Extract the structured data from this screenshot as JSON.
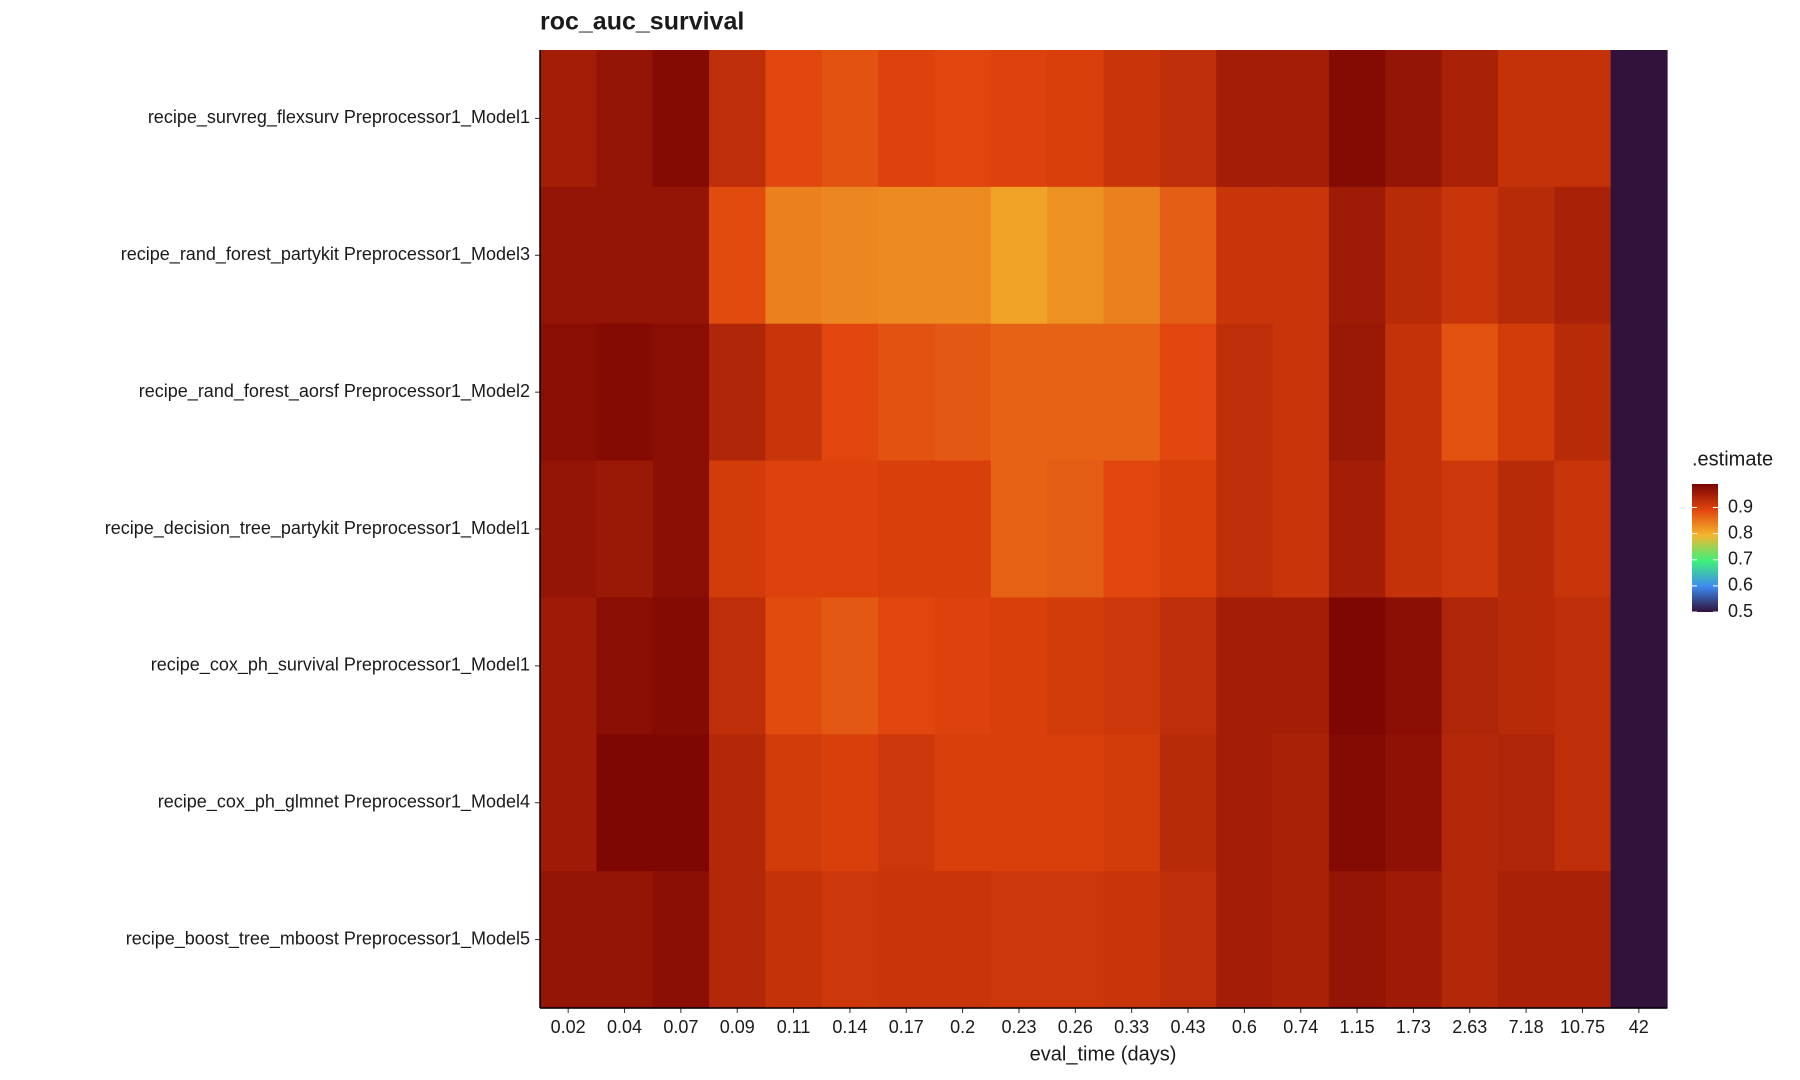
{
  "chart_data": {
    "type": "heatmap",
    "title": "roc_auc_survival",
    "x_label": "eval_time (days)",
    "categories": [
      "0.02",
      "0.04",
      "0.07",
      "0.09",
      "0.11",
      "0.14",
      "0.17",
      "0.2",
      "0.23",
      "0.26",
      "0.33",
      "0.43",
      "0.6",
      "0.74",
      "1.15",
      "1.73",
      "2.63",
      "7.18",
      "10.75",
      "42"
    ],
    "rows": [
      "recipe_survreg_flexsurv Preprocessor1_Model1",
      "recipe_rand_forest_partykit Preprocessor1_Model3",
      "recipe_rand_forest_aorsf Preprocessor1_Model2",
      "recipe_decision_tree_partykit Preprocessor1_Model1",
      "recipe_cox_ph_survival Preprocessor1_Model1",
      "recipe_cox_ph_glmnet Preprocessor1_Model4",
      "recipe_boost_tree_mboost Preprocessor1_Model5"
    ],
    "values": [
      [
        0.95,
        0.965,
        0.98,
        0.925,
        0.89,
        0.88,
        0.895,
        0.89,
        0.895,
        0.9,
        0.915,
        0.925,
        0.95,
        0.95,
        0.98,
        0.965,
        0.945,
        0.92,
        0.92,
        0.5
      ],
      [
        0.965,
        0.965,
        0.965,
        0.885,
        0.84,
        0.835,
        0.83,
        0.83,
        0.81,
        0.825,
        0.84,
        0.87,
        0.915,
        0.915,
        0.955,
        0.93,
        0.915,
        0.93,
        0.945,
        0.5
      ],
      [
        0.975,
        0.98,
        0.975,
        0.94,
        0.915,
        0.89,
        0.88,
        0.875,
        0.865,
        0.865,
        0.865,
        0.89,
        0.925,
        0.915,
        0.96,
        0.92,
        0.88,
        0.905,
        0.93,
        0.5
      ],
      [
        0.965,
        0.96,
        0.975,
        0.905,
        0.895,
        0.895,
        0.9,
        0.9,
        0.865,
        0.87,
        0.89,
        0.9,
        0.925,
        0.915,
        0.95,
        0.92,
        0.91,
        0.93,
        0.915,
        0.5
      ],
      [
        0.955,
        0.975,
        0.98,
        0.925,
        0.885,
        0.875,
        0.89,
        0.895,
        0.9,
        0.905,
        0.91,
        0.925,
        0.95,
        0.95,
        0.985,
        0.975,
        0.94,
        0.93,
        0.925,
        0.5
      ],
      [
        0.955,
        0.985,
        0.985,
        0.935,
        0.905,
        0.9,
        0.91,
        0.9,
        0.9,
        0.9,
        0.905,
        0.93,
        0.95,
        0.945,
        0.98,
        0.97,
        0.935,
        0.94,
        0.925,
        0.5
      ],
      [
        0.965,
        0.965,
        0.975,
        0.935,
        0.92,
        0.91,
        0.915,
        0.915,
        0.91,
        0.91,
        0.915,
        0.925,
        0.95,
        0.945,
        0.965,
        0.955,
        0.935,
        0.945,
        0.945,
        0.5
      ]
    ],
    "legend_title": ".estimate",
    "zlim": [
      0.5,
      0.99
    ],
    "colorbar_ticks": [
      0.5,
      0.6,
      0.7,
      0.8,
      0.9
    ],
    "colors": [
      "#30123b",
      "#3e8bf0",
      "#3ef07a",
      "#f4b52e",
      "#e0440c",
      "#7a0403"
    ]
  }
}
